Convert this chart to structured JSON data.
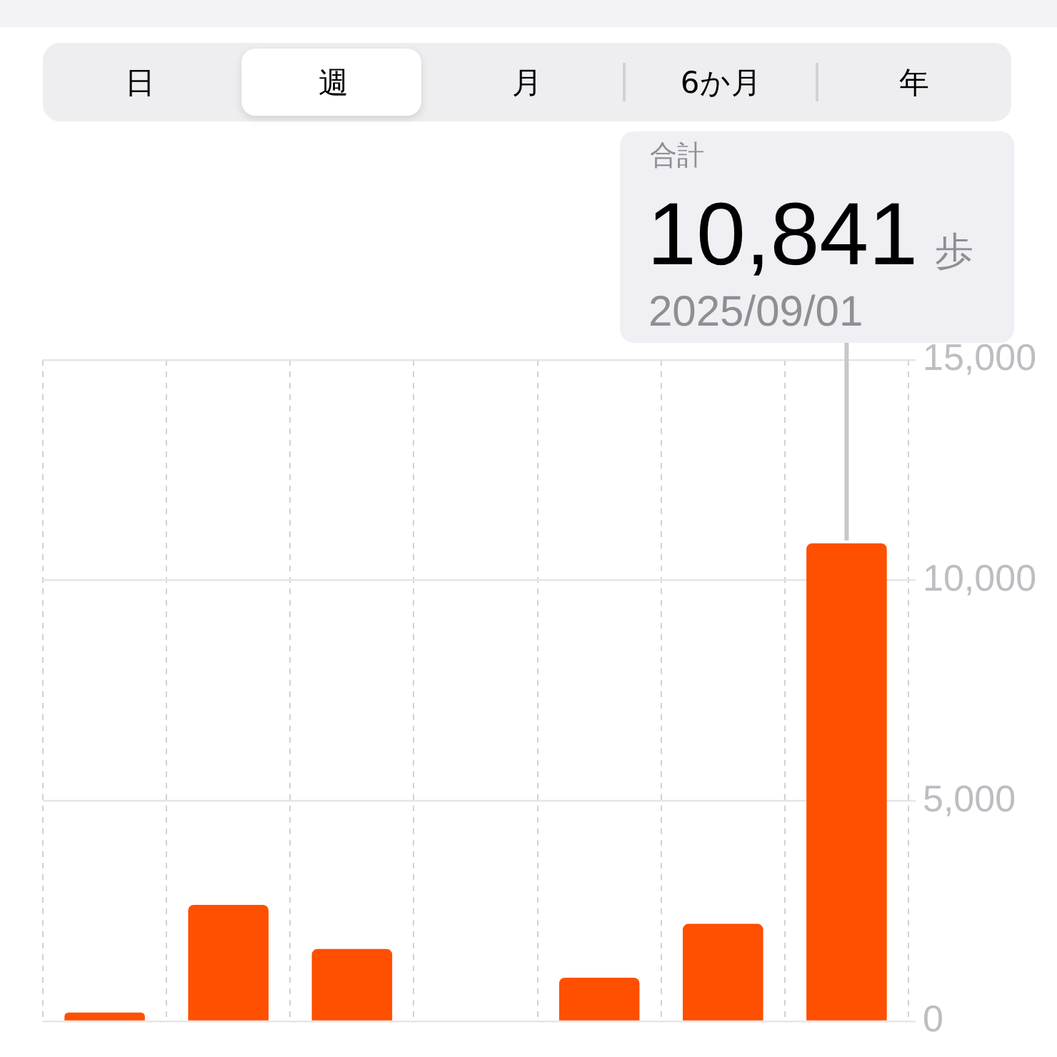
{
  "chart_data": {
    "type": "bar",
    "categories": [
      null,
      null,
      null,
      null,
      null,
      null,
      null
    ],
    "values": [
      200,
      2640,
      1640,
      null,
      990,
      2210,
      10841
    ],
    "color": "#ff4f00",
    "ylim": [
      0,
      15000
    ],
    "yticks": [
      0,
      {
        "value": 5000,
        "label": "5,000"
      },
      {
        "value": 10000,
        "label": "10,000"
      },
      {
        "value": 15000,
        "label": "15,000"
      }
    ],
    "grid": true,
    "tick_labels": "y",
    "value_labels": [
      null,
      null,
      null,
      null,
      null,
      null,
      "10,841"
    ],
    "annotations": [
      "日",
      "週",
      "月",
      "6か月",
      "年",
      "合計",
      "歩",
      "2025/09/01"
    ]
  }
}
